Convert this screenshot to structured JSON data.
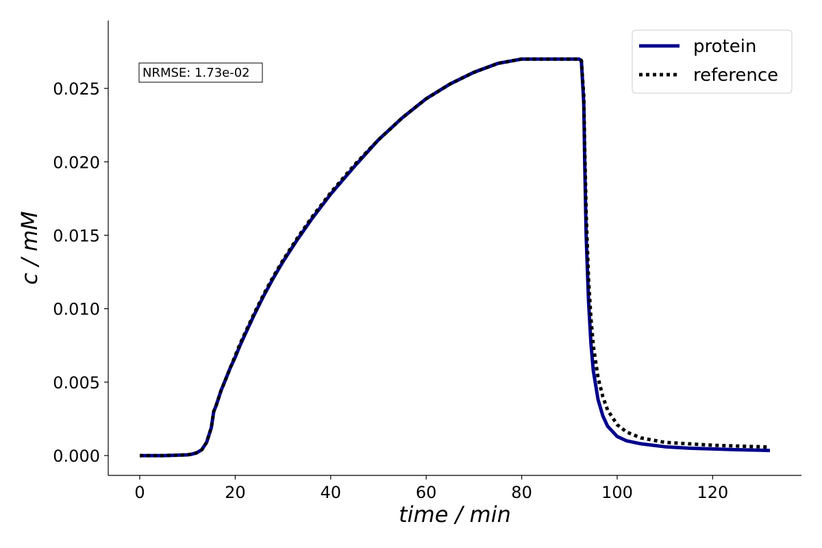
{
  "chart_data": {
    "type": "line",
    "title": "",
    "xlabel": "time / min",
    "ylabel": "c / mM",
    "xlim": [
      -6.6,
      138.6
    ],
    "ylim": [
      -0.00135,
      0.02962
    ],
    "xticks": [
      0,
      20,
      40,
      60,
      80,
      100,
      120
    ],
    "xtick_labels": [
      "0",
      "20",
      "40",
      "60",
      "80",
      "100",
      "120"
    ],
    "yticks": [
      0.0,
      0.005,
      0.01,
      0.015,
      0.02,
      0.025
    ],
    "ytick_labels": [
      "0.000",
      "0.005",
      "0.010",
      "0.015",
      "0.020",
      "0.025"
    ],
    "grid": false,
    "legend_position": "top-right",
    "annotation": "NRMSE: 1.73e-02",
    "series": [
      {
        "name": "protein",
        "color": "#00008b",
        "style": "solid",
        "x": [
          0,
          5,
          10,
          11,
          12,
          13,
          14,
          15,
          15.5,
          16,
          17,
          18,
          19,
          20,
          21,
          22,
          24,
          26,
          28,
          30,
          33,
          36,
          40,
          45,
          50,
          55,
          60,
          65,
          70,
          75,
          80,
          85,
          90,
          92,
          92.5,
          93,
          93.2,
          93.5,
          94,
          94.5,
          95,
          96,
          97,
          98,
          100,
          102,
          105,
          110,
          115,
          120,
          125,
          130,
          132
        ],
        "y": [
          0,
          0,
          5e-05,
          0.0001,
          0.0002,
          0.0004,
          0.0009,
          0.0019,
          0.003,
          0.0034,
          0.0044,
          0.0052,
          0.006,
          0.0067,
          0.0075,
          0.0082,
          0.0096,
          0.0109,
          0.0121,
          0.0132,
          0.0147,
          0.0161,
          0.0178,
          0.0197,
          0.0215,
          0.023,
          0.0243,
          0.0253,
          0.0261,
          0.0267,
          0.027,
          0.027,
          0.027,
          0.027,
          0.0269,
          0.024,
          0.02,
          0.015,
          0.0105,
          0.0077,
          0.0058,
          0.0038,
          0.0027,
          0.002,
          0.0013,
          0.001,
          0.0008,
          0.0006,
          0.0005,
          0.00045,
          0.0004,
          0.00036,
          0.00035
        ]
      },
      {
        "name": "reference",
        "color": "#000000",
        "style": "dotted",
        "x": [
          0,
          5,
          10,
          11,
          12,
          13,
          14,
          15,
          15.5,
          16,
          17,
          18,
          19,
          20,
          21,
          22,
          24,
          26,
          28,
          30,
          33,
          36,
          40,
          45,
          50,
          55,
          60,
          65,
          70,
          75,
          80,
          85,
          90,
          92,
          92.5,
          93,
          93.2,
          93.5,
          94,
          94.5,
          95,
          96,
          97,
          98,
          100,
          102,
          105,
          110,
          115,
          120,
          125,
          130,
          132
        ],
        "y": [
          0,
          0,
          5e-05,
          0.0001,
          0.0002,
          0.0004,
          0.0009,
          0.0019,
          0.003,
          0.0034,
          0.0044,
          0.0052,
          0.006,
          0.0068,
          0.0076,
          0.0083,
          0.0097,
          0.011,
          0.0122,
          0.0133,
          0.0148,
          0.0162,
          0.0179,
          0.0198,
          0.0215,
          0.023,
          0.0243,
          0.0253,
          0.0261,
          0.0267,
          0.027,
          0.027,
          0.027,
          0.027,
          0.0269,
          0.0245,
          0.021,
          0.0165,
          0.012,
          0.0094,
          0.0075,
          0.0053,
          0.004,
          0.0031,
          0.0021,
          0.0016,
          0.0012,
          0.0009,
          0.0008,
          0.0007,
          0.00065,
          0.0006,
          0.00058
        ]
      }
    ]
  }
}
